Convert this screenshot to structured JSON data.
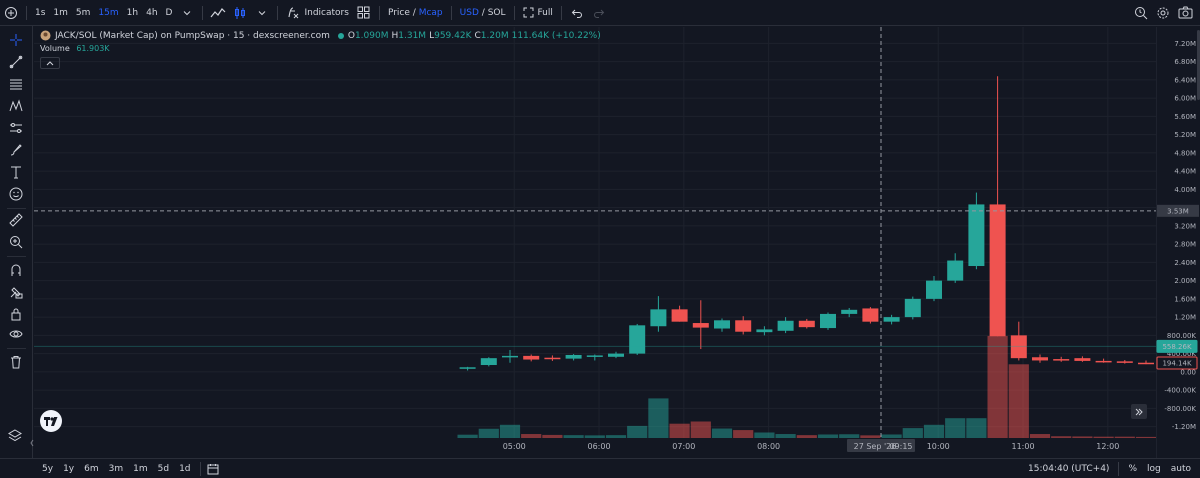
{
  "toolbar": {
    "intervals": [
      {
        "label": "1s",
        "active": false
      },
      {
        "label": "1m",
        "active": false
      },
      {
        "label": "5m",
        "active": false
      },
      {
        "label": "15m",
        "active": true
      },
      {
        "label": "1h",
        "active": false
      },
      {
        "label": "4h",
        "active": false
      },
      {
        "label": "D",
        "active": false
      }
    ],
    "indicators_label": "Indicators",
    "price_label": "Price",
    "slash": "/",
    "mcap_label": "Mcap",
    "usd_label": "USD",
    "sol_label": "SOL",
    "full_label": "Full",
    "colors": {
      "accent": "#2962ff",
      "up": "#26a69a",
      "down": "#ef5350"
    }
  },
  "legend": {
    "title": "JACK/SOL (Market Cap) on PumpSwap · 15 · dexscreener.com",
    "o_key": "O",
    "o_val": "1.090M",
    "h_key": "H",
    "h_val": "1.31M",
    "l_key": "L",
    "l_val": "959.42K",
    "c_key": "C",
    "c_val": "1.20M",
    "change": "111.64K (+10.22%)",
    "volume_label": "Volume",
    "volume_val": "61.903K"
  },
  "chart_data": {
    "type": "candlestick",
    "price_ticks": [
      "7.20M",
      "6.80M",
      "6.40M",
      "6.00M",
      "5.60M",
      "5.20M",
      "4.80M",
      "4.40M",
      "4.00M",
      "3.60M",
      "3.20M",
      "2.80M",
      "2.40M",
      "2.00M",
      "1.60M",
      "1.20M",
      "800.00K",
      "400.00K",
      "0.00",
      "-400.00K",
      "-800.00K",
      "-1.20M"
    ],
    "price_ticks_values": [
      7.2,
      6.8,
      6.4,
      6.0,
      5.6,
      5.2,
      4.8,
      4.4,
      4.0,
      3.6,
      3.2,
      2.8,
      2.4,
      2.0,
      1.6,
      1.2,
      0.8,
      0.4,
      0.0,
      -0.4,
      -0.8,
      -1.2
    ],
    "ylim": [
      -1.45,
      7.45
    ],
    "time_labels": [
      {
        "label": "05:00",
        "t": 2.2
      },
      {
        "label": "06:00",
        "t": 6.2
      },
      {
        "label": "07:00",
        "t": 10.2
      },
      {
        "label": "08:00",
        "t": 14.2
      },
      {
        "label": "10:00",
        "t": 22.2
      },
      {
        "label": "11:00",
        "t": 26.2
      },
      {
        "label": "12:00",
        "t": 30.2
      }
    ],
    "candles": [
      {
        "o": 0.07,
        "h": 0.11,
        "l": 0.03,
        "c": 0.1,
        "v": 0.15
      },
      {
        "o": 0.15,
        "h": 0.32,
        "l": 0.12,
        "c": 0.3,
        "v": 0.42
      },
      {
        "o": 0.35,
        "h": 0.48,
        "l": 0.2,
        "c": 0.35,
        "v": 0.6
      },
      {
        "o": 0.35,
        "h": 0.38,
        "l": 0.23,
        "c": 0.27,
        "v": 0.18
      },
      {
        "o": 0.31,
        "h": 0.36,
        "l": 0.24,
        "c": 0.3,
        "v": 0.14
      },
      {
        "o": 0.29,
        "h": 0.39,
        "l": 0.25,
        "c": 0.37,
        "v": 0.13
      },
      {
        "o": 0.33,
        "h": 0.38,
        "l": 0.25,
        "c": 0.36,
        "v": 0.12
      },
      {
        "o": 0.33,
        "h": 0.44,
        "l": 0.3,
        "c": 0.4,
        "v": 0.13
      },
      {
        "o": 0.4,
        "h": 1.05,
        "l": 0.37,
        "c": 1.02,
        "v": 0.55
      },
      {
        "o": 1.0,
        "h": 1.66,
        "l": 0.88,
        "c": 1.37,
        "v": 1.8
      },
      {
        "o": 1.37,
        "h": 1.45,
        "l": 1.1,
        "c": 1.1,
        "v": 0.65
      },
      {
        "o": 1.07,
        "h": 1.57,
        "l": 0.5,
        "c": 0.97,
        "v": 0.75
      },
      {
        "o": 0.95,
        "h": 1.17,
        "l": 0.88,
        "c": 1.13,
        "v": 0.43
      },
      {
        "o": 1.13,
        "h": 1.22,
        "l": 0.82,
        "c": 0.88,
        "v": 0.36
      },
      {
        "o": 0.87,
        "h": 1.0,
        "l": 0.8,
        "c": 0.93,
        "v": 0.25
      },
      {
        "o": 0.9,
        "h": 1.2,
        "l": 0.85,
        "c": 1.12,
        "v": 0.18
      },
      {
        "o": 1.12,
        "h": 1.16,
        "l": 0.95,
        "c": 0.98,
        "v": 0.13
      },
      {
        "o": 0.96,
        "h": 1.3,
        "l": 0.92,
        "c": 1.27,
        "v": 0.16
      },
      {
        "o": 1.27,
        "h": 1.4,
        "l": 1.2,
        "c": 1.36,
        "v": 0.17
      },
      {
        "o": 1.39,
        "h": 1.42,
        "l": 1.06,
        "c": 1.1,
        "v": 0.12
      },
      {
        "o": 1.1,
        "h": 1.25,
        "l": 1.04,
        "c": 1.2,
        "v": 0.16
      },
      {
        "o": 1.2,
        "h": 1.65,
        "l": 1.15,
        "c": 1.6,
        "v": 0.45
      },
      {
        "o": 1.6,
        "h": 2.1,
        "l": 1.55,
        "c": 2.0,
        "v": 0.6
      },
      {
        "o": 2.0,
        "h": 2.6,
        "l": 1.95,
        "c": 2.44,
        "v": 0.9
      },
      {
        "o": 2.32,
        "h": 3.93,
        "l": 2.25,
        "c": 3.67,
        "v": 0.9
      },
      {
        "o": 3.67,
        "h": 6.48,
        "l": 0.78,
        "c": 0.78,
        "v": 4.64
      },
      {
        "o": 0.8,
        "h": 1.1,
        "l": 0.25,
        "c": 0.3,
        "v": 3.35
      },
      {
        "o": 0.32,
        "h": 0.38,
        "l": 0.2,
        "c": 0.25,
        "v": 0.18
      },
      {
        "o": 0.28,
        "h": 0.33,
        "l": 0.22,
        "c": 0.27,
        "v": 0.08
      },
      {
        "o": 0.3,
        "h": 0.34,
        "l": 0.22,
        "c": 0.24,
        "v": 0.07
      },
      {
        "o": 0.24,
        "h": 0.29,
        "l": 0.2,
        "c": 0.22,
        "v": 0.06
      },
      {
        "o": 0.23,
        "h": 0.26,
        "l": 0.18,
        "c": 0.2,
        "v": 0.06
      },
      {
        "o": 0.2,
        "h": 0.25,
        "l": 0.17,
        "c": 0.19,
        "v": 0.05
      },
      {
        "o": 0.2,
        "h": 0.23,
        "l": 0.16,
        "c": 0.19,
        "v": 0.04
      }
    ],
    "crosshair": {
      "price": 3.53,
      "price_label": "3.53M",
      "t": 19.5,
      "time_label": "27 Sep '26",
      "time_label2": "09:15"
    },
    "price_badges": [
      {
        "label": "558.26K",
        "value": 0.558,
        "color": "#26a69a"
      },
      {
        "label": "194.14K",
        "value": 0.194,
        "color": "#ef5350"
      }
    ]
  },
  "bottombar": {
    "ranges": [
      "5y",
      "1y",
      "6m",
      "3m",
      "1m",
      "5d",
      "1d"
    ],
    "clock": "15:04:40 (UTC+4)",
    "percent": "%",
    "log": "log",
    "auto": "auto"
  }
}
